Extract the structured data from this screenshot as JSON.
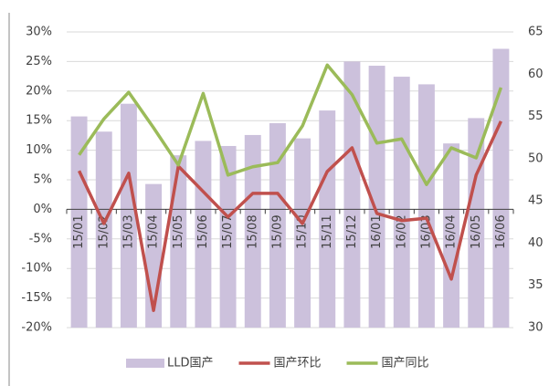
{
  "chart_data": {
    "type": "bar-line",
    "categories": [
      "15/01",
      "15/02",
      "15/03",
      "15/04",
      "15/05",
      "15/06",
      "15/07",
      "15/08",
      "15/09",
      "15/10",
      "15/11",
      "15/12",
      "16/01",
      "16/02",
      "16/03",
      "16/04",
      "16/05",
      "16/06"
    ],
    "series": [
      {
        "name": "LLD国产",
        "type": "bar",
        "axis": "y2",
        "color": "#ccc1dc",
        "values": [
          55,
          53.2,
          56.5,
          47,
          50.4,
          52.1,
          51.5,
          52.8,
          54.2,
          52.4,
          55.7,
          61.5,
          61,
          59.7,
          58.8,
          51.8,
          54.8,
          63
        ]
      },
      {
        "name": "国产环比",
        "type": "line",
        "color": "#c0504d",
        "values": [
          6.5,
          -2.4,
          6.1,
          -17.1,
          7.3,
          3,
          -1.3,
          2.7,
          2.7,
          -2.4,
          6.4,
          10.4,
          -0.7,
          -1.9,
          -1.5,
          -11.8,
          5.8,
          14.9
        ]
      },
      {
        "name": "国产同比",
        "type": "line",
        "color": "#9bbb59",
        "values": [
          9.2,
          15.3,
          19.8,
          13.8,
          7.5,
          19.6,
          5.8,
          7.2,
          7.9,
          14.1,
          24.4,
          19.4,
          11.2,
          11.9,
          4.2,
          10.4,
          8.7,
          20.6
        ]
      }
    ],
    "ylim": [
      -20,
      30
    ],
    "yticks": [
      {
        "value": -20,
        "label": "-20%"
      },
      {
        "value": -15,
        "label": "-15%"
      },
      {
        "value": -10,
        "label": "-10%"
      },
      {
        "value": -5,
        "label": "-5%"
      },
      {
        "value": 0,
        "label": "0%"
      },
      {
        "value": 5,
        "label": "5%"
      },
      {
        "value": 10,
        "label": "10%"
      },
      {
        "value": 15,
        "label": "15%"
      },
      {
        "value": 20,
        "label": "20%"
      },
      {
        "value": 25,
        "label": "25%"
      },
      {
        "value": 30,
        "label": "30%"
      }
    ],
    "y2lim": [
      30,
      65
    ],
    "y2ticks": [
      30,
      35,
      40,
      45,
      50,
      55,
      60,
      65
    ],
    "grid": true,
    "legend": "bottom"
  }
}
